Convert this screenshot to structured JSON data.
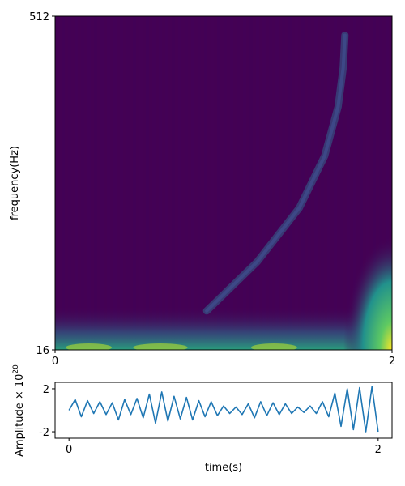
{
  "chart_data": [
    {
      "type": "heatmap",
      "ylabel": "frequency(Hz)",
      "x_ticks": [
        "0",
        "2"
      ],
      "y_ticks": [
        "16",
        "512"
      ],
      "xlim": [
        0,
        2
      ],
      "ylim": [
        16,
        512
      ],
      "colormap": "viridis",
      "features": {
        "chirp_track": {
          "description_values": "frequency rising with time, visible as a bright curved band",
          "points": [
            {
              "t": 0.9,
              "f": 24
            },
            {
              "t": 1.2,
              "f": 40
            },
            {
              "t": 1.45,
              "f": 70
            },
            {
              "t": 1.6,
              "f": 120
            },
            {
              "t": 1.68,
              "f": 200
            },
            {
              "t": 1.71,
              "f": 300
            },
            {
              "t": 1.72,
              "f": 420
            }
          ]
        },
        "low_frequency_band_hz": 18,
        "edge_energy_time": 2.0
      }
    },
    {
      "type": "line",
      "xlabel": "time(s)",
      "ylabel": "Amplitude × 10",
      "ylabel_exponent": "20",
      "x_ticks": [
        "0",
        "2"
      ],
      "y_ticks": [
        "2",
        "-2"
      ],
      "xlim": [
        -0.09,
        2.09
      ],
      "ylim": [
        -2.6,
        2.6
      ],
      "series": [
        {
          "color": "#1f77b4",
          "x": [
            0.0,
            0.04,
            0.08,
            0.12,
            0.16,
            0.2,
            0.24,
            0.28,
            0.32,
            0.36,
            0.4,
            0.44,
            0.48,
            0.52,
            0.56,
            0.6,
            0.64,
            0.68,
            0.72,
            0.76,
            0.8,
            0.84,
            0.88,
            0.92,
            0.96,
            1.0,
            1.04,
            1.08,
            1.12,
            1.16,
            1.2,
            1.24,
            1.28,
            1.32,
            1.36,
            1.4,
            1.44,
            1.48,
            1.52,
            1.56,
            1.6,
            1.64,
            1.68,
            1.72,
            1.76,
            1.8,
            1.84,
            1.88,
            1.92,
            1.96,
            2.0
          ],
          "y": [
            0.0,
            1.0,
            -0.6,
            0.9,
            -0.3,
            0.8,
            -0.4,
            0.7,
            -0.9,
            1.0,
            -0.4,
            1.1,
            -0.7,
            1.5,
            -1.2,
            1.7,
            -1.0,
            1.3,
            -0.8,
            1.2,
            -0.9,
            0.9,
            -0.6,
            0.8,
            -0.5,
            0.4,
            -0.3,
            0.3,
            -0.4,
            0.6,
            -0.7,
            0.8,
            -0.5,
            0.7,
            -0.4,
            0.6,
            -0.3,
            0.3,
            -0.2,
            0.4,
            -0.3,
            0.8,
            -0.6,
            1.6,
            -1.5,
            2.0,
            -1.8,
            2.1,
            -2.0,
            2.2,
            -2.0
          ]
        }
      ]
    }
  ]
}
